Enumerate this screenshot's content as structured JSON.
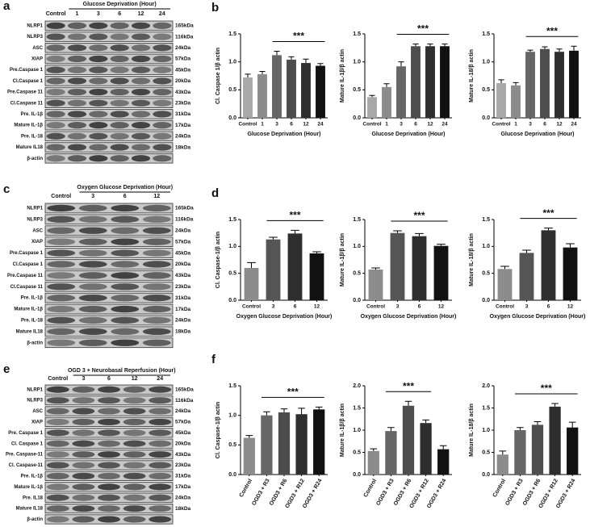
{
  "blots": [
    {
      "panel_label": "a",
      "header": "Glucose Deprivation (Hour)",
      "lanes": [
        "Control",
        "1",
        "3",
        "6",
        "12",
        "24"
      ],
      "rows": [
        {
          "name": "NLRP1",
          "kda": "165kDa"
        },
        {
          "name": "NLRP3",
          "kda": "116kDa"
        },
        {
          "name": "ASC",
          "kda": "24kDa"
        },
        {
          "name": "XIAP",
          "kda": "57kDa"
        },
        {
          "name": "Pre.Caspase 1",
          "kda": "45kDa"
        },
        {
          "name": "Cl.Caspase 1",
          "kda": "20kDa"
        },
        {
          "name": "Pre.Caspase 11",
          "kda": "43kDa"
        },
        {
          "name": "Cl.Caspase 11",
          "kda": "23kDa"
        },
        {
          "name": "Pre. IL-1β",
          "kda": "31kDa"
        },
        {
          "name": "Mature IL-1β",
          "kda": "17kDa"
        },
        {
          "name": "Pre. IL-18",
          "kda": "24kDa"
        },
        {
          "name": "Mature IL18",
          "kda": "18kDa"
        },
        {
          "name": "β-actin"
        }
      ]
    },
    {
      "panel_label": "c",
      "header": "Oxygen Glucose Deprivation (Hour)",
      "lanes": [
        "Control",
        "3",
        "6",
        "12"
      ],
      "rows": [
        {
          "name": "NLRP1",
          "kda": "165kDa"
        },
        {
          "name": "NLRP3",
          "kda": "116kDa"
        },
        {
          "name": "ASC",
          "kda": "24kDa"
        },
        {
          "name": "XIAP",
          "kda": "57kDa"
        },
        {
          "name": "Pre.Caspase 1",
          "kda": "45kDa"
        },
        {
          "name": "Cl.Caspase 1",
          "kda": "20kDa"
        },
        {
          "name": "Pre.Caspase 11",
          "kda": "43kDa"
        },
        {
          "name": "Cl.Caspase 11",
          "kda": "23kDa"
        },
        {
          "name": "Pre. IL-1β",
          "kda": "31kDa"
        },
        {
          "name": "Mature IL-1β",
          "kda": "17kDa"
        },
        {
          "name": "Pre. IL-18",
          "kda": "24kDa"
        },
        {
          "name": "Mature IL18",
          "kda": "18kDa"
        },
        {
          "name": "β-actin"
        }
      ]
    },
    {
      "panel_label": "e",
      "header": "OGD 3 + Neurobasal Reperfusion (Hour)",
      "lanes": [
        "Control",
        "3",
        "6",
        "12",
        "24"
      ],
      "rows": [
        {
          "name": "NLRP1",
          "kda": "165kDa"
        },
        {
          "name": "NLRP3",
          "kda": "116kDa"
        },
        {
          "name": "ASC",
          "kda": "24kDa"
        },
        {
          "name": "XIAP",
          "kda": "57kDa"
        },
        {
          "name": "Pre. Caspase 1",
          "kda": "45kDa"
        },
        {
          "name": "Cl. Caspase 1",
          "kda": "20kDa"
        },
        {
          "name": "Pre. Caspase-11",
          "kda": "43kDa"
        },
        {
          "name": "Cl. Caspase-11",
          "kda": "23kDa"
        },
        {
          "name": "Pre. IL-1β",
          "kda": "31kDa"
        },
        {
          "name": "Mature IL-1β",
          "kda": "17kDa"
        },
        {
          "name": "Pre. IL18",
          "kda": "24kDa"
        },
        {
          "name": "Mature IL18",
          "kda": "18kDa"
        },
        {
          "name": "β-actin"
        }
      ]
    }
  ],
  "chart_data": [
    {
      "type": "bar",
      "panel_label": "b",
      "y_label": "Cl. Caspase 1/β actin",
      "x_label": "Glucose Deprivation (Hour)",
      "annotation": "***",
      "categories": [
        "Control",
        "1",
        "3",
        "6",
        "12",
        "24"
      ],
      "values": [
        0.72,
        0.78,
        1.12,
        1.04,
        0.98,
        0.93
      ],
      "errors": [
        0.06,
        0.05,
        0.07,
        0.05,
        0.07,
        0.04
      ],
      "colors": [
        "#a8a8a8",
        "#8c8c8c",
        "#666666",
        "#4d4d4d",
        "#2e2e2e",
        "#111111"
      ],
      "ylim": [
        0,
        1.5
      ],
      "yticks": [
        {
          "value": 0,
          "label": "0.0"
        },
        0.5,
        {
          "value": 1,
          "label": "1.0"
        },
        1.5
      ]
    },
    {
      "type": "bar",
      "y_label": "Mature IL-1β/β actin",
      "x_label": "Glucose Deprivation (Hour)",
      "annotation": "***",
      "categories": [
        "Control",
        "1",
        "3",
        "6",
        "12",
        "24"
      ],
      "values": [
        0.37,
        0.55,
        0.92,
        1.28,
        1.28,
        1.28
      ],
      "errors": [
        0.03,
        0.06,
        0.08,
        0.04,
        0.04,
        0.04
      ],
      "colors": [
        "#a8a8a8",
        "#8c8c8c",
        "#666666",
        "#4d4d4d",
        "#2e2e2e",
        "#111111"
      ],
      "ylim": [
        0,
        1.5
      ],
      "yticks": [
        {
          "value": 0,
          "label": "0.0"
        },
        0.5,
        {
          "value": 1,
          "label": "1.0"
        },
        1.5
      ]
    },
    {
      "type": "bar",
      "y_label": "Mature IL-18/β actin",
      "x_label": "Glucose Deprivation (Hour)",
      "annotation": "***",
      "categories": [
        "Control",
        "1",
        "3",
        "6",
        "12",
        "24"
      ],
      "values": [
        0.62,
        0.58,
        1.18,
        1.23,
        1.18,
        1.2
      ],
      "errors": [
        0.06,
        0.05,
        0.03,
        0.04,
        0.05,
        0.08
      ],
      "colors": [
        "#a8a8a8",
        "#8c8c8c",
        "#666666",
        "#4d4d4d",
        "#2e2e2e",
        "#111111"
      ],
      "ylim": [
        0,
        1.5
      ],
      "yticks": [
        {
          "value": 0,
          "label": "0.0"
        },
        0.5,
        {
          "value": 1,
          "label": "1.0"
        },
        1.5
      ]
    },
    {
      "type": "bar",
      "panel_label": "d",
      "y_label": "Cl. Caspase-1/β actin",
      "x_label": "Oxygen Glucose Deprivation (Hour)",
      "annotation": "***",
      "categories": [
        "Control",
        "3",
        "6",
        "12"
      ],
      "values": [
        0.6,
        1.13,
        1.24,
        0.87
      ],
      "errors": [
        0.1,
        0.04,
        0.06,
        0.03
      ],
      "colors": [
        "#8c8c8c",
        "#555555",
        "#2e2e2e",
        "#111111"
      ],
      "ylim": [
        0,
        1.5
      ],
      "yticks": [
        {
          "value": 0,
          "label": "0.0"
        },
        0.5,
        {
          "value": 1,
          "label": "1.0"
        },
        1.5
      ]
    },
    {
      "type": "bar",
      "y_label": "Mature IL-1β/β actin",
      "x_label": "Oxygen Glucose Deprivation (Hour)",
      "annotation": "***",
      "categories": [
        "Control",
        "3",
        "6",
        "12"
      ],
      "values": [
        0.57,
        1.25,
        1.19,
        1.01
      ],
      "errors": [
        0.03,
        0.04,
        0.05,
        0.03
      ],
      "colors": [
        "#8c8c8c",
        "#555555",
        "#2e2e2e",
        "#111111"
      ],
      "ylim": [
        0,
        1.5
      ],
      "yticks": [
        {
          "value": 0,
          "label": "0.0"
        },
        0.5,
        {
          "value": 1,
          "label": "1.0"
        },
        1.5
      ]
    },
    {
      "type": "bar",
      "y_label": "Mature IL-18/β actin",
      "x_label": "Oxygen Glucose Deprivation (Hour)",
      "annotation": "***",
      "categories": [
        "Control",
        "3",
        "6",
        "12"
      ],
      "values": [
        0.58,
        0.88,
        1.3,
        0.98
      ],
      "errors": [
        0.05,
        0.05,
        0.04,
        0.07
      ],
      "colors": [
        "#8c8c8c",
        "#555555",
        "#2e2e2e",
        "#111111"
      ],
      "ylim": [
        0,
        1.5
      ],
      "yticks": [
        {
          "value": 0,
          "label": "0.0"
        },
        0.5,
        {
          "value": 1,
          "label": "1.0"
        },
        1.5
      ]
    },
    {
      "type": "bar",
      "panel_label": "f",
      "y_label": "Cl. Caspase-1/β actin",
      "annotation": "***",
      "categories": [
        "Control",
        "OGD3 + R3",
        "OGD3 + R6",
        "OGD3 + R12",
        "OGD3 + R24"
      ],
      "values": [
        0.62,
        1.0,
        1.05,
        1.02,
        1.1
      ],
      "errors": [
        0.04,
        0.06,
        0.06,
        0.1,
        0.04
      ],
      "colors": [
        "#8c8c8c",
        "#666666",
        "#4d4d4d",
        "#2e2e2e",
        "#111111"
      ],
      "ylim": [
        0,
        1.5
      ],
      "yticks": [
        {
          "value": 0,
          "label": "0.0"
        },
        0.5,
        {
          "value": 1,
          "label": "1.0"
        },
        1.5
      ]
    },
    {
      "type": "bar",
      "y_label": "Mature IL-1β/β actin",
      "annotation": "***",
      "categories": [
        "Control",
        "OGD3 + R3",
        "OGD3 + R6",
        "OGD3 + R12",
        "OGD3 + R24"
      ],
      "values": [
        0.53,
        0.98,
        1.55,
        1.16,
        0.57
      ],
      "errors": [
        0.05,
        0.08,
        0.1,
        0.07,
        0.08
      ],
      "colors": [
        "#8c8c8c",
        "#666666",
        "#4d4d4d",
        "#2e2e2e",
        "#111111"
      ],
      "ylim": [
        0,
        2
      ],
      "yticks": [
        {
          "value": 0,
          "label": "0.0"
        },
        0.5,
        {
          "value": 1,
          "label": "1.0"
        },
        1.5,
        {
          "value": 2,
          "label": "2.0"
        }
      ]
    },
    {
      "type": "bar",
      "y_label": "Mature IL-18/β actin",
      "annotation": "***",
      "categories": [
        "Control",
        "OGD3 + R3",
        "OGD3 + R6",
        "OGD3 + R12",
        "OGD3 + R24"
      ],
      "values": [
        0.45,
        1.0,
        1.12,
        1.53,
        1.06
      ],
      "errors": [
        0.08,
        0.06,
        0.07,
        0.07,
        0.12
      ],
      "colors": [
        "#8c8c8c",
        "#666666",
        "#4d4d4d",
        "#2e2e2e",
        "#111111"
      ],
      "ylim": [
        0,
        2
      ],
      "yticks": [
        {
          "value": 0,
          "label": "0.0"
        },
        0.5,
        {
          "value": 1,
          "label": "1.0"
        },
        1.5,
        {
          "value": 2,
          "label": "2.0"
        }
      ]
    }
  ]
}
